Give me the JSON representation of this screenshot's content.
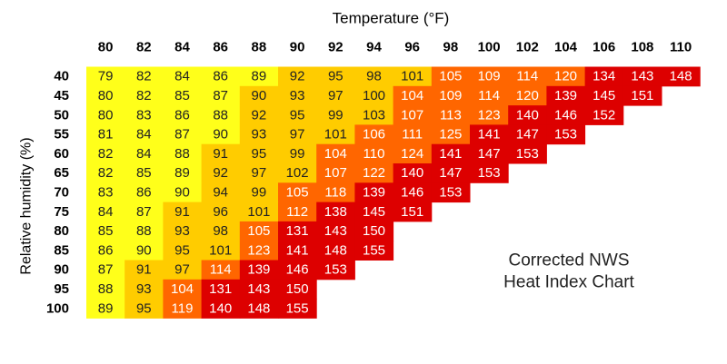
{
  "title": "Temperature (°F)",
  "y_label": "Relative humidity (%)",
  "note": [
    "Corrected NWS",
    "Heat Index Chart"
  ],
  "table": {
    "columns": [
      80,
      82,
      84,
      86,
      88,
      90,
      92,
      94,
      96,
      98,
      100,
      102,
      104,
      106,
      108,
      110
    ],
    "rows": [
      {
        "label": 40,
        "values": [
          79,
          82,
          84,
          86,
          89,
          92,
          95,
          98,
          101,
          105,
          109,
          114,
          120,
          134,
          143,
          148
        ],
        "colors": [
          "#ffff1a",
          "#ffff1a",
          "#ffff1a",
          "#ffff1a",
          "#ffff1a",
          "#ffcc00",
          "#ffcc00",
          "#ffcc00",
          "#ffcc00",
          "#ff6600",
          "#ff6600",
          "#ff6600",
          "#ff6600",
          "#dd0000",
          "#dd0000",
          "#dd0000"
        ]
      },
      {
        "label": 45,
        "values": [
          80,
          82,
          85,
          87,
          90,
          93,
          97,
          100,
          104,
          109,
          114,
          120,
          139,
          145,
          151
        ],
        "colors": [
          "#ffff1a",
          "#ffff1a",
          "#ffff1a",
          "#ffff1a",
          "#ffcc00",
          "#ffcc00",
          "#ffcc00",
          "#ffcc00",
          "#ff6600",
          "#ff6600",
          "#ff6600",
          "#ff6600",
          "#dd0000",
          "#dd0000",
          "#dd0000"
        ]
      },
      {
        "label": 50,
        "values": [
          80,
          83,
          86,
          88,
          92,
          95,
          99,
          103,
          107,
          113,
          123,
          140,
          146,
          152
        ],
        "colors": [
          "#ffff1a",
          "#ffff1a",
          "#ffff1a",
          "#ffff1a",
          "#ffcc00",
          "#ffcc00",
          "#ffcc00",
          "#ffcc00",
          "#ff6600",
          "#ff6600",
          "#ff6600",
          "#dd0000",
          "#dd0000",
          "#dd0000"
        ]
      },
      {
        "label": 55,
        "values": [
          81,
          84,
          87,
          90,
          93,
          97,
          101,
          106,
          111,
          125,
          141,
          147,
          153
        ],
        "colors": [
          "#ffff1a",
          "#ffff1a",
          "#ffff1a",
          "#ffff1a",
          "#ffcc00",
          "#ffcc00",
          "#ffcc00",
          "#ff6600",
          "#ff6600",
          "#ff6600",
          "#dd0000",
          "#dd0000",
          "#dd0000"
        ]
      },
      {
        "label": 60,
        "values": [
          82,
          84,
          88,
          91,
          95,
          99,
          104,
          110,
          124,
          141,
          147,
          153
        ],
        "colors": [
          "#ffff1a",
          "#ffff1a",
          "#ffff1a",
          "#ffcc00",
          "#ffcc00",
          "#ffcc00",
          "#ff6600",
          "#ff6600",
          "#ff6600",
          "#dd0000",
          "#dd0000",
          "#dd0000"
        ]
      },
      {
        "label": 65,
        "values": [
          82,
          85,
          89,
          92,
          97,
          102,
          107,
          122,
          140,
          147,
          153
        ],
        "colors": [
          "#ffff1a",
          "#ffff1a",
          "#ffff1a",
          "#ffcc00",
          "#ffcc00",
          "#ffcc00",
          "#ff6600",
          "#ff6600",
          "#dd0000",
          "#dd0000",
          "#dd0000"
        ]
      },
      {
        "label": 70,
        "values": [
          83,
          86,
          90,
          94,
          99,
          105,
          118,
          139,
          146,
          153
        ],
        "colors": [
          "#ffff1a",
          "#ffff1a",
          "#ffff1a",
          "#ffcc00",
          "#ffcc00",
          "#ff6600",
          "#ff6600",
          "#dd0000",
          "#dd0000",
          "#dd0000"
        ]
      },
      {
        "label": 75,
        "values": [
          84,
          87,
          91,
          96,
          101,
          112,
          138,
          145,
          151
        ],
        "colors": [
          "#ffff1a",
          "#ffff1a",
          "#ffcc00",
          "#ffcc00",
          "#ffcc00",
          "#ff6600",
          "#dd0000",
          "#dd0000",
          "#dd0000"
        ]
      },
      {
        "label": 80,
        "values": [
          85,
          88,
          93,
          98,
          105,
          131,
          143,
          150
        ],
        "colors": [
          "#ffff1a",
          "#ffff1a",
          "#ffcc00",
          "#ffcc00",
          "#ff6600",
          "#dd0000",
          "#dd0000",
          "#dd0000"
        ]
      },
      {
        "label": 85,
        "values": [
          86,
          90,
          95,
          101,
          123,
          141,
          148,
          155
        ],
        "colors": [
          "#ffff1a",
          "#ffff1a",
          "#ffcc00",
          "#ffcc00",
          "#ff6600",
          "#dd0000",
          "#dd0000",
          "#dd0000"
        ]
      },
      {
        "label": 90,
        "values": [
          87,
          91,
          97,
          114,
          139,
          146,
          153
        ],
        "colors": [
          "#ffff1a",
          "#ffcc00",
          "#ffcc00",
          "#ff6600",
          "#dd0000",
          "#dd0000",
          "#dd0000"
        ]
      },
      {
        "label": 95,
        "values": [
          88,
          93,
          104,
          131,
          143,
          150
        ],
        "colors": [
          "#ffff1a",
          "#ffcc00",
          "#ff6600",
          "#dd0000",
          "#dd0000",
          "#dd0000"
        ]
      },
      {
        "label": 100,
        "values": [
          89,
          95,
          119,
          140,
          148,
          155
        ],
        "colors": [
          "#ffff1a",
          "#ffcc00",
          "#ff6600",
          "#dd0000",
          "#dd0000",
          "#dd0000"
        ]
      }
    ]
  }
}
